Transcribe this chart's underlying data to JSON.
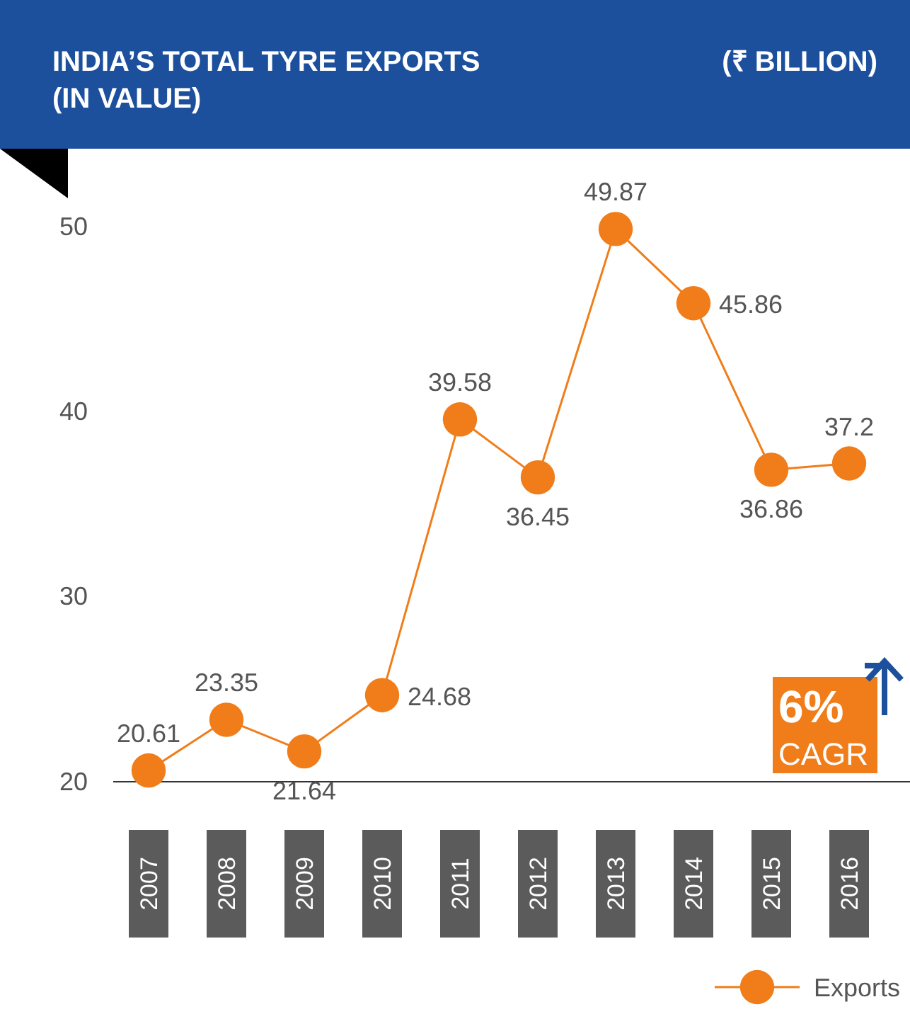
{
  "chart_data": {
    "type": "line",
    "title": "INDIA’S TOTAL TYRE EXPORTS (IN VALUE)",
    "subtitle": "(₹ BILLION)",
    "categories": [
      "2007",
      "2008",
      "2009",
      "2010",
      "2011",
      "2012",
      "2013",
      "2014",
      "2015",
      "2016"
    ],
    "series": [
      {
        "name": "Exports",
        "color": "#f07d1a",
        "values": [
          20.61,
          23.35,
          21.64,
          24.68,
          39.58,
          36.45,
          49.87,
          45.86,
          36.86,
          37.2
        ]
      }
    ],
    "ylim": [
      20,
      50
    ],
    "yticks": [
      20,
      30,
      40,
      50
    ],
    "grid": false,
    "legend": "bottom right",
    "marker": "circle",
    "line_style": "solid",
    "data_labels": true,
    "annotations": [
      "6% CAGR"
    ]
  }
}
